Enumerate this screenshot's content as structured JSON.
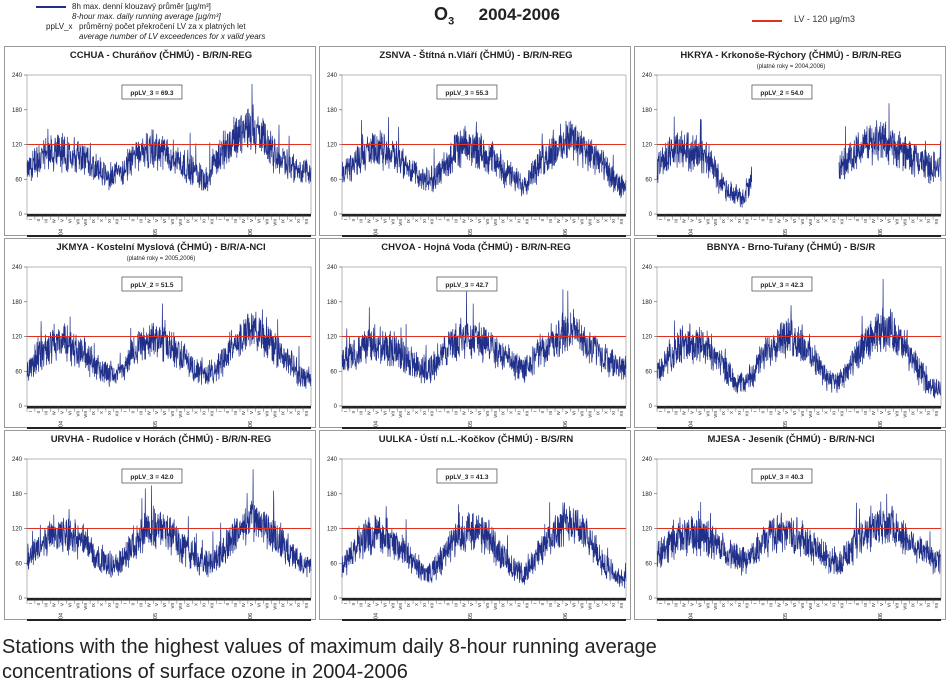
{
  "header": {
    "legend_series_cs": "8h max. denní klouzavý průměr [µg/m³]",
    "legend_series_en": "8-hour max. daily running average [µg/m³]",
    "legend_key": "ppLV_x",
    "legend_key_cs": "průměrný počet překročení LV za x platných let",
    "legend_key_en": "average number of LV exceedences for x valid years",
    "pollutant": "O",
    "pollutant_sub": "3",
    "years": "2004-2006",
    "limit_label": "LV   - 120 µg/m3"
  },
  "caption_line1": "Stations with the highest values of maximum daily 8-hour running average",
  "caption_line2": "concentrations of surface ozone in 2004-2006",
  "colors": {
    "series": "#1f2f8a",
    "limit": "#e03020",
    "grid": "#bbbbbb"
  },
  "chart_data": [
    {
      "type": "line",
      "title": "CCHUA - Churáňov (ČHMÚ) - B/R/N-REG",
      "subtitle": "",
      "annotation": "ppLV_3 = 69.3",
      "ylim": [
        0,
        240
      ],
      "yticks": [
        0,
        60,
        120,
        180,
        240
      ],
      "limit": 120,
      "months": [
        "I",
        "II",
        "III",
        "IV",
        "V",
        "VI",
        "VII",
        "VIII",
        "IX",
        "X",
        "XI",
        "XII",
        "I",
        "II",
        "III",
        "IV",
        "V",
        "VI",
        "VII",
        "VIII",
        "IX",
        "X",
        "XI",
        "XII",
        "I",
        "II",
        "III",
        "IV",
        "V",
        "VI",
        "VII",
        "VIII",
        "IX",
        "X",
        "XI",
        "XII"
      ],
      "year_labels": [
        "04",
        "05",
        "06"
      ],
      "monthly_means": [
        78,
        88,
        102,
        110,
        106,
        104,
        102,
        96,
        86,
        76,
        70,
        66,
        74,
        88,
        100,
        112,
        110,
        108,
        100,
        94,
        84,
        76,
        66,
        62,
        92,
        112,
        126,
        140,
        152,
        140,
        128,
        106,
        96,
        88,
        78,
        72
      ],
      "gap": null
    },
    {
      "type": "line",
      "title": "ZSNVA - Štítná n.Vláří (ČHMÚ) - B/R/N-REG",
      "subtitle": "",
      "annotation": "ppLV_3 = 55.3",
      "ylim": [
        0,
        240
      ],
      "yticks": [
        0,
        60,
        120,
        180,
        240
      ],
      "limit": 120,
      "months": [
        "I",
        "II",
        "III",
        "IV",
        "V",
        "VI",
        "VII",
        "VIII",
        "IX",
        "X",
        "XI",
        "XII",
        "I",
        "II",
        "III",
        "IV",
        "V",
        "VI",
        "VII",
        "VIII",
        "IX",
        "X",
        "XI",
        "XII",
        "I",
        "II",
        "III",
        "IV",
        "V",
        "VI",
        "VII",
        "VIII",
        "IX",
        "X",
        "XI",
        "XII"
      ],
      "year_labels": [
        "04",
        "05",
        "06"
      ],
      "monthly_means": [
        68,
        80,
        96,
        106,
        108,
        110,
        106,
        100,
        84,
        72,
        62,
        56,
        66,
        82,
        100,
        112,
        116,
        112,
        106,
        98,
        82,
        70,
        58,
        52,
        68,
        84,
        100,
        112,
        120,
        132,
        122,
        104,
        96,
        86,
        64,
        48
      ],
      "gap": null
    },
    {
      "type": "line",
      "title": "HKRYA - Krkonoše-Rýchory (ČHMÚ) - B/R/N-REG",
      "subtitle": "(platné roky = 2004,2006)",
      "annotation": "ppLV_2 = 54.0",
      "ylim": [
        0,
        240
      ],
      "yticks": [
        0,
        60,
        120,
        180,
        240
      ],
      "limit": 120,
      "months": [
        "I",
        "II",
        "III",
        "IV",
        "V",
        "VI",
        "VII",
        "VIII",
        "IX",
        "X",
        "XI",
        "XII",
        "I",
        "II",
        "III",
        "IV",
        "V",
        "VI",
        "VII",
        "VIII",
        "IX",
        "X",
        "XI",
        "XII",
        "I",
        "II",
        "III",
        "IV",
        "V",
        "VI",
        "VII",
        "VIII",
        "IX",
        "X",
        "XI",
        "XII"
      ],
      "year_labels": [
        "04",
        "05",
        "06"
      ],
      "monthly_means": [
        82,
        94,
        104,
        110,
        108,
        104,
        98,
        82,
        58,
        42,
        32,
        26,
        60,
        null,
        null,
        null,
        null,
        null,
        null,
        null,
        null,
        null,
        null,
        78,
        92,
        104,
        116,
        124,
        128,
        122,
        114,
        108,
        100,
        94,
        86,
        80
      ],
      "gap": [
        13,
        22
      ]
    },
    {
      "type": "line",
      "title": "JKMYA - Kostelní Myslová (ČHMÚ) - B/R/A-NCI",
      "subtitle": "(platné roky = 2005,2006)",
      "annotation": "ppLV_2 = 51.5",
      "ylim": [
        0,
        240
      ],
      "yticks": [
        0,
        60,
        120,
        180,
        240
      ],
      "limit": 120,
      "months": [
        "I",
        "II",
        "III",
        "IV",
        "V",
        "VI",
        "VII",
        "VIII",
        "IX",
        "X",
        "XI",
        "XII",
        "I",
        "II",
        "III",
        "IV",
        "V",
        "VI",
        "VII",
        "VIII",
        "IX",
        "X",
        "XI",
        "XII",
        "I",
        "II",
        "III",
        "IV",
        "V",
        "VI",
        "VII",
        "VIII",
        "IX",
        "X",
        "XI",
        "XII"
      ],
      "year_labels": [
        "04",
        "05",
        "06"
      ],
      "monthly_means": [
        60,
        78,
        92,
        104,
        110,
        108,
        100,
        92,
        80,
        66,
        58,
        54,
        64,
        84,
        102,
        112,
        114,
        110,
        104,
        96,
        82,
        68,
        60,
        56,
        66,
        84,
        102,
        114,
        124,
        132,
        122,
        106,
        94,
        80,
        62,
        48
      ],
      "gap": null
    },
    {
      "type": "line",
      "title": "CHVOA - Hojná Voda (ČHMÚ) - B/R/N-REG",
      "subtitle": "",
      "annotation": "ppLV_3 = 42.7",
      "ylim": [
        0,
        240
      ],
      "yticks": [
        0,
        60,
        120,
        180,
        240
      ],
      "limit": 120,
      "months": [
        "I",
        "II",
        "III",
        "IV",
        "V",
        "VI",
        "VII",
        "VIII",
        "IX",
        "X",
        "XI",
        "XII",
        "I",
        "II",
        "III",
        "IV",
        "V",
        "VI",
        "VII",
        "VIII",
        "IX",
        "X",
        "XI",
        "XII",
        "I",
        "II",
        "III",
        "IV",
        "V",
        "VI",
        "VII",
        "VIII",
        "IX",
        "X",
        "XI",
        "XII"
      ],
      "year_labels": [
        "04",
        "05",
        "06"
      ],
      "monthly_means": [
        70,
        84,
        96,
        104,
        106,
        104,
        100,
        94,
        84,
        74,
        66,
        62,
        72,
        90,
        106,
        118,
        118,
        116,
        110,
        104,
        90,
        80,
        70,
        66,
        74,
        90,
        104,
        116,
        124,
        130,
        120,
        106,
        96,
        86,
        74,
        66
      ],
      "gap": null
    },
    {
      "type": "line",
      "title": "BBNYA - Brno-Tuřany (ČHMÚ) - B/S/R",
      "subtitle": "",
      "annotation": "ppLV_3 = 42.3",
      "ylim": [
        0,
        240
      ],
      "yticks": [
        0,
        60,
        120,
        180,
        240
      ],
      "limit": 120,
      "months": [
        "I",
        "II",
        "III",
        "IV",
        "V",
        "VI",
        "VII",
        "VIII",
        "IX",
        "X",
        "XI",
        "XII",
        "I",
        "II",
        "III",
        "IV",
        "V",
        "VI",
        "VII",
        "VIII",
        "IX",
        "X",
        "XI",
        "XII",
        "I",
        "II",
        "III",
        "IV",
        "V",
        "VI",
        "VII",
        "VIII",
        "IX",
        "X",
        "XI",
        "XII"
      ],
      "year_labels": [
        "04",
        "05",
        "06"
      ],
      "monthly_means": [
        56,
        74,
        92,
        106,
        110,
        110,
        104,
        94,
        76,
        58,
        44,
        38,
        54,
        76,
        96,
        112,
        118,
        116,
        110,
        98,
        78,
        58,
        44,
        40,
        56,
        78,
        98,
        114,
        126,
        136,
        126,
        106,
        88,
        66,
        44,
        30
      ],
      "gap": null
    },
    {
      "type": "line",
      "title": "URVHA - Rudolice v Horách (ČHMÚ) - B/R/N-REG",
      "subtitle": "",
      "annotation": "ppLV_3 = 42.0",
      "ylim": [
        0,
        240
      ],
      "yticks": [
        0,
        60,
        120,
        180,
        240
      ],
      "limit": 120,
      "months": [
        "I",
        "II",
        "III",
        "IV",
        "V",
        "VI",
        "VII",
        "VIII",
        "IX",
        "X",
        "XI",
        "XII",
        "I",
        "II",
        "III",
        "IV",
        "V",
        "VI",
        "VII",
        "VIII",
        "IX",
        "X",
        "XI",
        "XII",
        "I",
        "II",
        "III",
        "IV",
        "V",
        "VI",
        "VII",
        "VIII",
        "IX",
        "X",
        "XI",
        "XII"
      ],
      "year_labels": [
        "04",
        "05",
        "06"
      ],
      "monthly_means": [
        66,
        82,
        98,
        110,
        112,
        108,
        104,
        96,
        82,
        70,
        62,
        56,
        64,
        84,
        102,
        116,
        120,
        118,
        110,
        100,
        86,
        72,
        62,
        56,
        68,
        86,
        104,
        118,
        130,
        136,
        126,
        110,
        96,
        84,
        68,
        56
      ],
      "gap": null
    },
    {
      "type": "line",
      "title": "UULKA - Ústí n.L.-Kočkov (ČHMÚ) - B/S/RN",
      "subtitle": "",
      "annotation": "ppLV_3 = 41.3",
      "ylim": [
        0,
        240
      ],
      "yticks": [
        0,
        60,
        120,
        180,
        240
      ],
      "limit": 120,
      "months": [
        "I",
        "II",
        "III",
        "IV",
        "V",
        "VI",
        "VII",
        "VIII",
        "IX",
        "X",
        "XI",
        "XII",
        "I",
        "II",
        "III",
        "IV",
        "V",
        "VI",
        "VII",
        "VIII",
        "IX",
        "X",
        "XI",
        "XII",
        "I",
        "II",
        "III",
        "IV",
        "V",
        "VI",
        "VII",
        "VIII",
        "IX",
        "X",
        "XI",
        "XII"
      ],
      "year_labels": [
        "04",
        "05",
        "06"
      ],
      "monthly_means": [
        54,
        72,
        92,
        106,
        110,
        108,
        102,
        92,
        76,
        60,
        48,
        42,
        54,
        76,
        98,
        112,
        118,
        114,
        108,
        96,
        78,
        60,
        46,
        40,
        56,
        80,
        100,
        116,
        128,
        136,
        124,
        104,
        84,
        64,
        46,
        34
      ],
      "gap": null
    },
    {
      "type": "line",
      "title": "MJESA - Jeseník (ČHMÚ) - B/R/N-NCI",
      "subtitle": "",
      "annotation": "ppLV_3 = 40.3",
      "ylim": [
        0,
        240
      ],
      "yticks": [
        0,
        60,
        120,
        180,
        240
      ],
      "limit": 120,
      "months": [
        "I",
        "II",
        "III",
        "IV",
        "V",
        "VI",
        "VII",
        "VIII",
        "IX",
        "X",
        "XI",
        "XII",
        "I",
        "II",
        "III",
        "IV",
        "V",
        "VI",
        "VII",
        "VIII",
        "IX",
        "X",
        "XI",
        "XII",
        "I",
        "II",
        "III",
        "IV",
        "V",
        "VI",
        "VII",
        "VIII",
        "IX",
        "X",
        "XI",
        "XII"
      ],
      "year_labels": [
        "04",
        "05",
        "06"
      ],
      "monthly_means": [
        72,
        86,
        100,
        108,
        110,
        108,
        104,
        96,
        86,
        76,
        70,
        64,
        70,
        88,
        102,
        112,
        114,
        112,
        106,
        98,
        86,
        76,
        68,
        62,
        72,
        88,
        102,
        114,
        124,
        130,
        122,
        108,
        98,
        88,
        76,
        66
      ],
      "gap": null
    }
  ]
}
